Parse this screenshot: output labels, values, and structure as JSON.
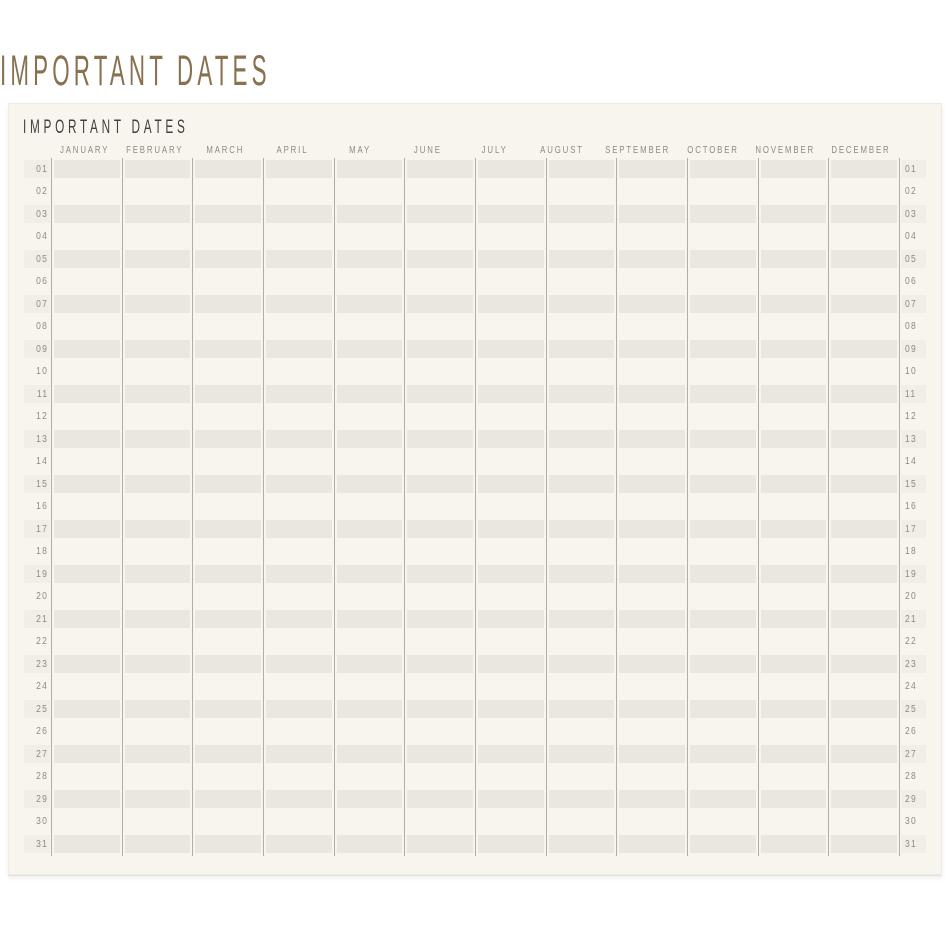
{
  "outer_title": "IMPORTANT DATES",
  "card": {
    "title": "IMPORTANT DATES",
    "months": [
      "JANUARY",
      "FEBRUARY",
      "MARCH",
      "APRIL",
      "MAY",
      "JUNE",
      "JULY",
      "AUGUST",
      "SEPTEMBER",
      "OCTOBER",
      "NOVEMBER",
      "DECEMBER"
    ],
    "days": [
      "01",
      "02",
      "03",
      "04",
      "05",
      "06",
      "07",
      "08",
      "09",
      "10",
      "11",
      "12",
      "13",
      "14",
      "15",
      "16",
      "17",
      "18",
      "19",
      "20",
      "21",
      "22",
      "23",
      "24",
      "25",
      "26",
      "27",
      "28",
      "29",
      "30",
      "31"
    ]
  },
  "colors": {
    "page_bg": "#ffffff",
    "card_bg": "#f8f5ef",
    "stripe": "#eae7df",
    "line": "#b3ada2",
    "muted_text": "#8f8a80",
    "title_text": "#413f3a",
    "accent_brown": "#87714f"
  }
}
